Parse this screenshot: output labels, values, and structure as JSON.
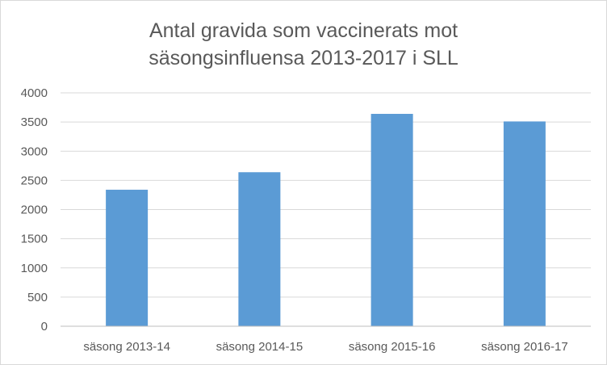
{
  "chart_data": {
    "type": "bar",
    "title_lines": [
      "Antal gravida som vaccinerats mot",
      "säsongsinfluensa 2013-2017 i SLL"
    ],
    "categories": [
      "säsong 2013-14",
      "säsong 2014-15",
      "säsong 2015-16",
      "säsong 2016-17"
    ],
    "values": [
      2340,
      2640,
      3640,
      3510
    ],
    "yticks": [
      0,
      500,
      1000,
      1500,
      2000,
      2500,
      3000,
      3500,
      4000
    ],
    "ylim": [
      0,
      4000
    ],
    "grid": true,
    "legend": "none",
    "bar_color": "#5b9bd5",
    "grid_color": "#d9d9d9"
  }
}
